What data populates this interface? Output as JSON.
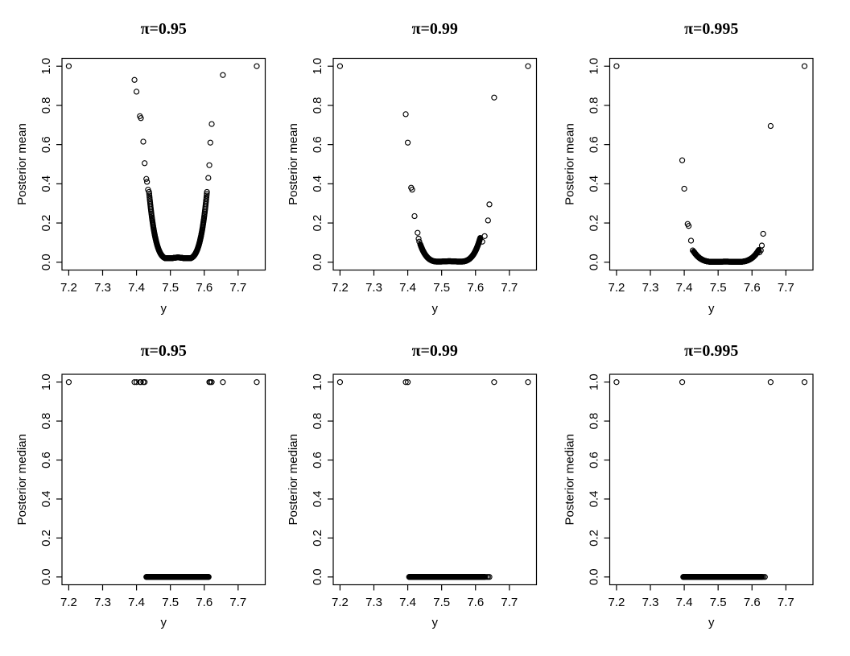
{
  "page": {
    "background": "#ffffff",
    "description": "2x3 grid of R-style scatter plots of posterior outlier probability versus observation y"
  },
  "chart_data": {
    "type": "scatter",
    "grid_layout": "2 rows x 3 columns",
    "marker": {
      "shape": "open-circle",
      "color": "#000000",
      "radius": 3.05,
      "stroke_width": 1.15
    },
    "grid_lines": "off",
    "xlabel": "y",
    "x_tick_labels": [
      "7.2",
      "7.3",
      "7.4",
      "7.5",
      "7.6",
      "7.7"
    ],
    "x_tick_values": [
      7.2,
      7.3,
      7.4,
      7.5,
      7.6,
      7.7
    ],
    "y_tick_labels": [
      "0.0",
      "0.2",
      "0.4",
      "0.6",
      "0.8",
      "1.0"
    ],
    "y_tick_values": [
      0.0,
      0.2,
      0.4,
      0.6,
      0.8,
      1.0
    ],
    "xlim": [
      7.18,
      7.78
    ],
    "ylim": [
      -0.04,
      1.04
    ],
    "row_ylabels": [
      "Posterior mean",
      "Posterior median"
    ],
    "column_titles": [
      "π=0.95",
      "π=0.99",
      "π=0.995"
    ],
    "panels": [
      {
        "id": "mean-pi-0.95",
        "row": 0,
        "col": 0,
        "title": "π=0.95",
        "xlabel": "y",
        "ylabel": "Posterior mean",
        "kind": "mean",
        "outliers": [
          [
            7.2,
            1.0
          ],
          [
            7.394,
            0.93
          ],
          [
            7.4,
            0.87
          ],
          [
            7.41,
            0.745
          ],
          [
            7.413,
            0.735
          ],
          [
            7.42,
            0.615
          ],
          [
            7.424,
            0.505
          ],
          [
            7.429,
            0.425
          ],
          [
            7.431,
            0.41
          ],
          [
            7.434,
            0.37
          ],
          [
            7.612,
            0.43
          ],
          [
            7.615,
            0.495
          ],
          [
            7.618,
            0.61
          ],
          [
            7.622,
            0.705
          ],
          [
            7.655,
            0.955
          ],
          [
            7.755,
            1.0
          ]
        ],
        "dense_curve": {
          "x_min": 7.437,
          "x_max": 7.608,
          "center": 7.5225,
          "level": 0.024,
          "a2": -14.2,
          "a4": 8200,
          "count": 320,
          "min_value": 0.02
        }
      },
      {
        "id": "mean-pi-0.99",
        "row": 0,
        "col": 1,
        "title": "π=0.99",
        "xlabel": "y",
        "ylabel": "Posterior mean",
        "kind": "mean",
        "outliers": [
          [
            7.2,
            1.0
          ],
          [
            7.394,
            0.755
          ],
          [
            7.4,
            0.61
          ],
          [
            7.41,
            0.38
          ],
          [
            7.413,
            0.37
          ],
          [
            7.42,
            0.235
          ],
          [
            7.429,
            0.15
          ],
          [
            7.432,
            0.12
          ],
          [
            7.434,
            0.105
          ],
          [
            7.62,
            0.105
          ],
          [
            7.627,
            0.133
          ],
          [
            7.637,
            0.213
          ],
          [
            7.641,
            0.295
          ],
          [
            7.655,
            0.84
          ],
          [
            7.755,
            1.0
          ]
        ],
        "dense_curve": {
          "x_min": 7.437,
          "x_max": 7.614,
          "center": 7.5225,
          "level": 0.005,
          "a2": -4.69,
          "a4": 2256,
          "count": 320,
          "min_value": 0.003
        }
      },
      {
        "id": "mean-pi-0.995",
        "row": 0,
        "col": 2,
        "title": "π=0.995",
        "xlabel": "y",
        "ylabel": "Posterior mean",
        "kind": "mean",
        "outliers": [
          [
            7.2,
            1.0
          ],
          [
            7.394,
            0.52
          ],
          [
            7.4,
            0.375
          ],
          [
            7.41,
            0.195
          ],
          [
            7.413,
            0.185
          ],
          [
            7.42,
            0.11
          ],
          [
            7.425,
            0.06
          ],
          [
            7.622,
            0.05
          ],
          [
            7.626,
            0.06
          ],
          [
            7.629,
            0.085
          ],
          [
            7.633,
            0.145
          ],
          [
            7.655,
            0.695
          ],
          [
            7.755,
            1.0
          ]
        ],
        "dense_curve": {
          "x_min": 7.428,
          "x_max": 7.62,
          "center": 7.5225,
          "level": 0.003,
          "a2": -2.3,
          "a4": 900,
          "count": 320,
          "min_value": 0.002
        }
      },
      {
        "id": "median-pi-0.95",
        "row": 1,
        "col": 0,
        "title": "π=0.95",
        "xlabel": "y",
        "ylabel": "Posterior median",
        "kind": "median",
        "ones_x": [
          7.2,
          7.394,
          7.4,
          7.41,
          7.413,
          7.42,
          7.424,
          7.615,
          7.618,
          7.622,
          7.655,
          7.755
        ],
        "zeros_band": {
          "x_min": 7.429,
          "x_max": 7.613,
          "count": 300
        },
        "zeros_extra_x": []
      },
      {
        "id": "median-pi-0.99",
        "row": 1,
        "col": 1,
        "title": "π=0.99",
        "xlabel": "y",
        "ylabel": "Posterior median",
        "kind": "median",
        "ones_x": [
          7.2,
          7.394,
          7.4,
          7.655,
          7.755
        ],
        "zeros_band": {
          "x_min": 7.404,
          "x_max": 7.628,
          "count": 300
        },
        "zeros_extra_x": [
          7.633,
          7.637,
          7.641
        ]
      },
      {
        "id": "median-pi-0.995",
        "row": 1,
        "col": 2,
        "title": "π=0.995",
        "xlabel": "y",
        "ylabel": "Posterior median",
        "kind": "median",
        "ones_x": [
          7.2,
          7.394,
          7.655,
          7.755
        ],
        "zeros_band": {
          "x_min": 7.397,
          "x_max": 7.63,
          "count": 300
        },
        "zeros_extra_x": [
          7.634,
          7.638
        ]
      }
    ]
  }
}
